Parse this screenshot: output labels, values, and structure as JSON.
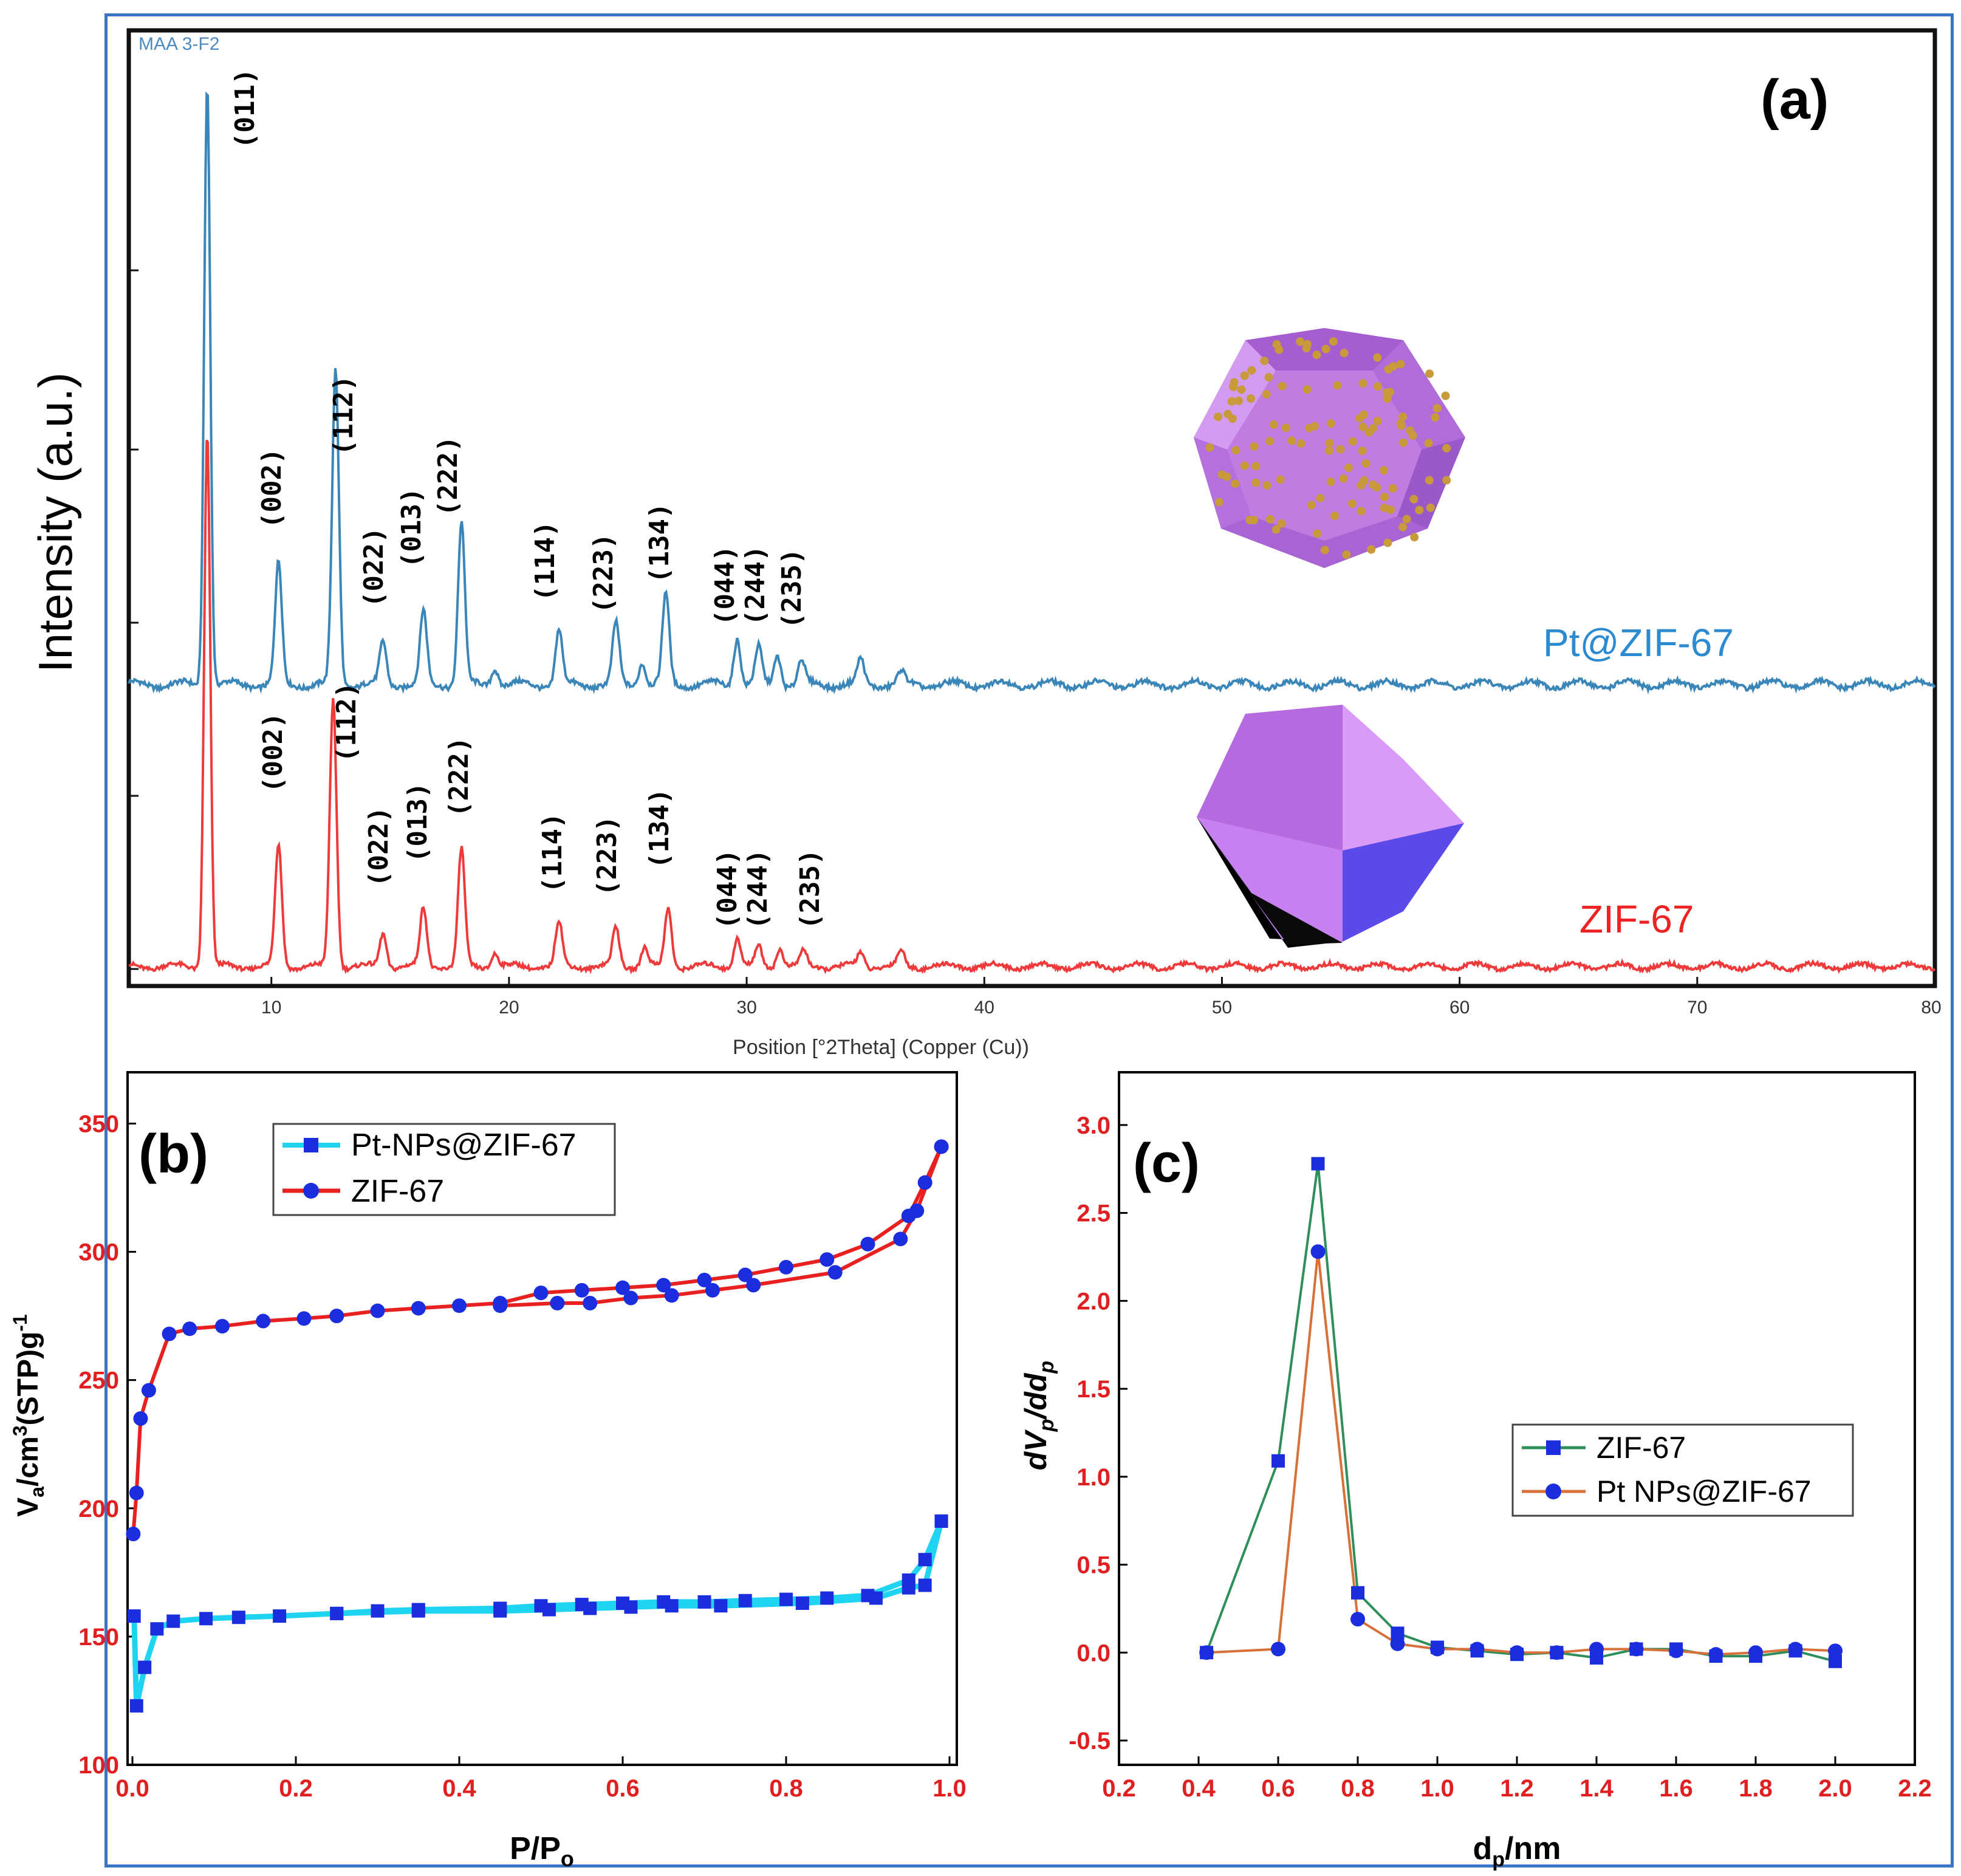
{
  "chart_data": [
    {
      "type": "line",
      "panel": "(a)",
      "source_label": "MAA 3-F2",
      "xlabel": "Position [°2Theta] (Copper (Cu))",
      "ylabel": "Intensity (a.u.)",
      "xlim": [
        4,
        80
      ],
      "xticks": [
        10,
        20,
        30,
        40,
        50,
        60,
        70,
        80
      ],
      "series": [
        {
          "name": "Pt@ZIF-67",
          "color": "#3a86b8",
          "offset": 0.22,
          "peaks": [
            [
              7.3,
              1.0
            ],
            [
              10.3,
              0.2
            ],
            [
              12.7,
              0.52
            ],
            [
              14.7,
              0.07
            ],
            [
              16.4,
              0.12
            ],
            [
              18.0,
              0.27
            ],
            [
              19.4,
              0.03
            ],
            [
              22.1,
              0.09
            ],
            [
              24.5,
              0.1
            ],
            [
              25.6,
              0.04
            ],
            [
              26.6,
              0.15
            ],
            [
              29.6,
              0.08
            ],
            [
              30.5,
              0.06
            ],
            [
              31.3,
              0.05
            ],
            [
              32.3,
              0.04
            ],
            [
              34.8,
              0.04
            ],
            [
              36.5,
              0.02
            ]
          ]
        },
        {
          "name": "ZIF-67",
          "color": "#ee3a3a",
          "offset": 0.0,
          "peaks": [
            [
              7.3,
              1.1
            ],
            [
              10.3,
              0.25
            ],
            [
              12.6,
              0.55
            ],
            [
              14.7,
              0.07
            ],
            [
              16.4,
              0.12
            ],
            [
              18.0,
              0.24
            ],
            [
              19.4,
              0.03
            ],
            [
              22.1,
              0.09
            ],
            [
              24.5,
              0.08
            ],
            [
              25.7,
              0.04
            ],
            [
              26.7,
              0.12
            ],
            [
              29.6,
              0.06
            ],
            [
              30.5,
              0.04
            ],
            [
              31.4,
              0.04
            ],
            [
              32.4,
              0.03
            ],
            [
              34.8,
              0.03
            ],
            [
              36.5,
              0.03
            ]
          ]
        }
      ],
      "annotations": {
        "top": [
          "(011)",
          "(002)",
          "(112)",
          "(022)",
          "(013)",
          "(222)",
          "(114)",
          "(223)",
          "(134)",
          "(044)",
          "(244)",
          "(235)"
        ],
        "bottom": [
          "(002)",
          "(112)",
          "(022)",
          "(013)",
          "(222)",
          "(114)",
          "(223)",
          "(134)",
          "(044)",
          "(244)",
          "(235)"
        ]
      }
    },
    {
      "type": "line",
      "panel": "(b)",
      "xlabel": "P/P",
      "xlabel_sub": "o",
      "ylabel": "V",
      "ylabel_sub": "a",
      "ylabel_rest": "/cm",
      "ylabel_sup": "3",
      "ylabel_tail": "(STP)g",
      "ylabel_sup2": "-1",
      "xlim": [
        0,
        1.0
      ],
      "ylim": [
        100,
        370
      ],
      "xticks": [
        0.0,
        0.2,
        0.4,
        0.6,
        0.8,
        1.0
      ],
      "yticks": [
        100,
        150,
        200,
        250,
        300,
        350
      ],
      "legend": [
        "Pt-NPs@ZIF-67",
        "ZIF-67"
      ],
      "series": [
        {
          "name": "Pt-NPs@ZIF-67",
          "color": "#1fd4f0",
          "marker": "square",
          "adsorption": [
            [
              0.002,
              158
            ],
            [
              0.005,
              123
            ],
            [
              0.015,
              138
            ],
            [
              0.03,
              153
            ],
            [
              0.05,
              156
            ],
            [
              0.09,
              157
            ],
            [
              0.13,
              157.5
            ],
            [
              0.18,
              158
            ],
            [
              0.25,
              159
            ],
            [
              0.3,
              160
            ],
            [
              0.35,
              160.5
            ],
            [
              0.45,
              161
            ],
            [
              0.5,
              162
            ],
            [
              0.55,
              162.5
            ],
            [
              0.6,
              163
            ],
            [
              0.65,
              163.5
            ],
            [
              0.7,
              163.5
            ],
            [
              0.75,
              164
            ],
            [
              0.8,
              164.5
            ],
            [
              0.85,
              165
            ],
            [
              0.9,
              166
            ],
            [
              0.95,
              172
            ],
            [
              0.97,
              180
            ],
            [
              0.99,
              195
            ]
          ],
          "desorption": [
            [
              0.99,
              195
            ],
            [
              0.97,
              170
            ],
            [
              0.95,
              169
            ],
            [
              0.91,
              165
            ],
            [
              0.82,
              163
            ],
            [
              0.72,
              162
            ],
            [
              0.66,
              162
            ],
            [
              0.61,
              161.5
            ],
            [
              0.56,
              161
            ],
            [
              0.51,
              160.5
            ],
            [
              0.45,
              160
            ],
            [
              0.35,
              160
            ],
            [
              0.25,
              159
            ]
          ]
        },
        {
          "name": "ZIF-67",
          "color": "#e82020",
          "marker": "circle",
          "adsorption": [
            [
              0.001,
              190
            ],
            [
              0.005,
              206
            ],
            [
              0.01,
              235
            ],
            [
              0.02,
              246
            ],
            [
              0.045,
              268
            ],
            [
              0.07,
              270
            ],
            [
              0.11,
              271
            ],
            [
              0.16,
              273
            ],
            [
              0.21,
              274
            ],
            [
              0.25,
              275
            ],
            [
              0.3,
              277
            ],
            [
              0.35,
              278
            ],
            [
              0.4,
              279
            ],
            [
              0.45,
              280
            ],
            [
              0.5,
              284
            ],
            [
              0.55,
              285
            ],
            [
              0.6,
              286
            ],
            [
              0.65,
              287
            ],
            [
              0.7,
              289
            ],
            [
              0.75,
              291
            ],
            [
              0.8,
              294
            ],
            [
              0.85,
              297
            ],
            [
              0.9,
              303
            ],
            [
              0.95,
              314
            ],
            [
              0.97,
              327
            ],
            [
              0.99,
              341
            ]
          ],
          "desorption": [
            [
              0.99,
              341
            ],
            [
              0.96,
              316
            ],
            [
              0.94,
              305
            ],
            [
              0.86,
              292
            ],
            [
              0.76,
              287
            ],
            [
              0.71,
              285
            ],
            [
              0.66,
              283
            ],
            [
              0.61,
              282
            ],
            [
              0.56,
              280
            ],
            [
              0.52,
              280
            ],
            [
              0.45,
              279
            ]
          ]
        }
      ]
    },
    {
      "type": "line",
      "panel": "(c)",
      "xlabel": "d",
      "xlabel_sub": "p",
      "xlabel_tail": "/nm",
      "ylabel": "dV",
      "ylabel_sub": "p",
      "ylabel_tail": "/dd",
      "ylabel_sub2": "p",
      "xlim": [
        0.2,
        2.2
      ],
      "ylim": [
        -0.5,
        3.3
      ],
      "xticks": [
        0.2,
        0.4,
        0.6,
        0.8,
        1.0,
        1.2,
        1.4,
        1.6,
        1.8,
        2.0,
        2.2
      ],
      "yticks": [
        -0.5,
        0.0,
        0.5,
        1.0,
        1.5,
        2.0,
        2.5,
        3.0
      ],
      "legend": [
        "ZIF-67",
        "Pt NPs@ZIF-67"
      ],
      "series": [
        {
          "name": "ZIF-67",
          "color": "#2f8f5a",
          "marker": "square",
          "x": [
            0.42,
            0.6,
            0.7,
            0.8,
            0.9,
            1.0,
            1.1,
            1.2,
            1.3,
            1.4,
            1.5,
            1.6,
            1.7,
            1.8,
            1.9,
            2.0
          ],
          "y": [
            0.0,
            1.09,
            2.78,
            0.34,
            0.11,
            0.03,
            0.01,
            -0.01,
            0.0,
            -0.03,
            0.02,
            0.02,
            -0.02,
            -0.02,
            0.01,
            -0.05
          ]
        },
        {
          "name": "Pt NPs@ZIF-67",
          "color": "#d8703a",
          "marker": "circle",
          "x": [
            0.42,
            0.6,
            0.7,
            0.8,
            0.9,
            1.0,
            1.1,
            1.2,
            1.3,
            1.4,
            1.5,
            1.6,
            1.7,
            1.8,
            1.9,
            2.0
          ],
          "y": [
            0.0,
            0.02,
            2.28,
            0.19,
            0.05,
            0.02,
            0.02,
            0.0,
            0.0,
            0.02,
            0.02,
            0.01,
            -0.01,
            0.0,
            0.02,
            0.01
          ]
        }
      ]
    }
  ]
}
